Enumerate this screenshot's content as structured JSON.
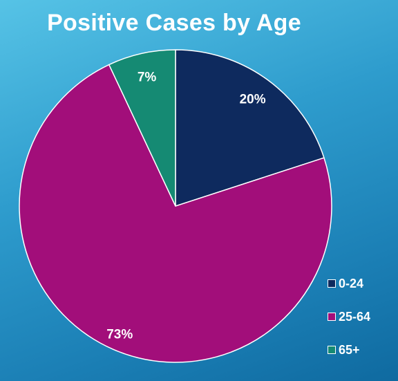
{
  "chart_data": {
    "type": "pie",
    "title": "Positive Cases by Age",
    "categories": [
      "0-24",
      "25-64",
      "65+"
    ],
    "values": [
      20,
      73,
      7
    ],
    "data_labels": [
      "20%",
      "73%",
      "7%"
    ],
    "colors": [
      "#0e2a5e",
      "#a20e7a",
      "#158a73"
    ],
    "legend_position": "bottom-right",
    "start_angle_deg": 0,
    "direction": "clockwise"
  },
  "legend": {
    "items": [
      {
        "label": "0-24",
        "color": "#0e2a5e"
      },
      {
        "label": "25-64",
        "color": "#a20e7a"
      },
      {
        "label": "65+",
        "color": "#158a73"
      }
    ]
  }
}
